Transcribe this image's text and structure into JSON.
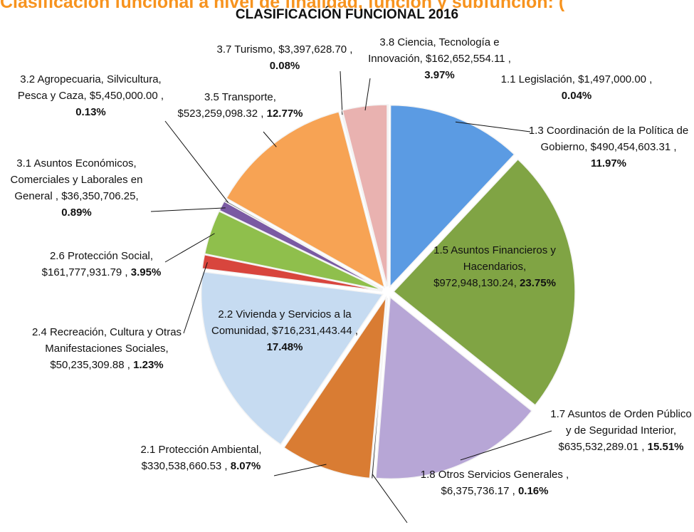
{
  "chart_data": {
    "type": "pie",
    "heading": "Clasificación funcional a nivel de finalidad, función y subfunción: (",
    "title": "CLASIFICACIÓN FUNCIONAL 2016",
    "categories": [
      "1.1 Legislación,",
      "1.3 Coordinación de la Política de Gobierno,",
      "1.5 Asuntos Financieros y Hacendarios,",
      "1.7 Asuntos de Orden Público y de Seguridad Interior,",
      "1.8 Otros Servicios Generales ,",
      "2.1 Protección Ambiental,",
      "2.2 Vivienda y Servicios a la Comunidad,",
      "2.4 Recreación, Cultura y Otras Manifestaciones Sociales,",
      "2.6 Protección Social,",
      "3.1 Asuntos Económicos, Comerciales y Laborales en General ,",
      "3.2 Agropecuaria, Silvicultura, Pesca y Caza,",
      "3.5 Transporte,",
      "3.7 Turismo,",
      "3.8 Ciencia, Tecnología e Innovación,"
    ],
    "amount_labels": [
      "$1,497,000.00 ,",
      "$490,454,603.31 ,",
      "$972,948,130.24,",
      "$635,532,289.01 ,",
      "$6,375,736.17 ,",
      "$330,538,660.53 ,",
      "$716,231,443.44 ,",
      "$50,235,309.88 ,",
      "$161,777,931.79 ,",
      "$36,350,706.25,",
      "$5,450,000.00 ,",
      "$523,259,098.32 ,",
      "$3,397,628.70 ,",
      "$162,652,554.11 ,"
    ],
    "values": [
      0.04,
      11.97,
      23.75,
      15.51,
      0.16,
      8.07,
      17.48,
      1.23,
      3.95,
      0.89,
      0.13,
      12.77,
      0.08,
      3.97
    ],
    "value_labels": [
      "0.04%",
      "11.97%",
      "23.75%",
      "15.51%",
      "0.16%",
      "8.07%",
      "17.48%",
      "1.23%",
      "3.95%",
      "0.89%",
      "0.13%",
      "12.77%",
      "0.08%",
      "3.97%"
    ],
    "colors": [
      "#3a66b0",
      "#5b9be3",
      "#80a444",
      "#b7a6d6",
      "#222222",
      "#d97c33",
      "#c6dbf1",
      "#d8453d",
      "#8fbf4c",
      "#7a5aa3",
      "#2a2a2a",
      "#f7a354",
      "#222222",
      "#e9b2b0"
    ]
  }
}
